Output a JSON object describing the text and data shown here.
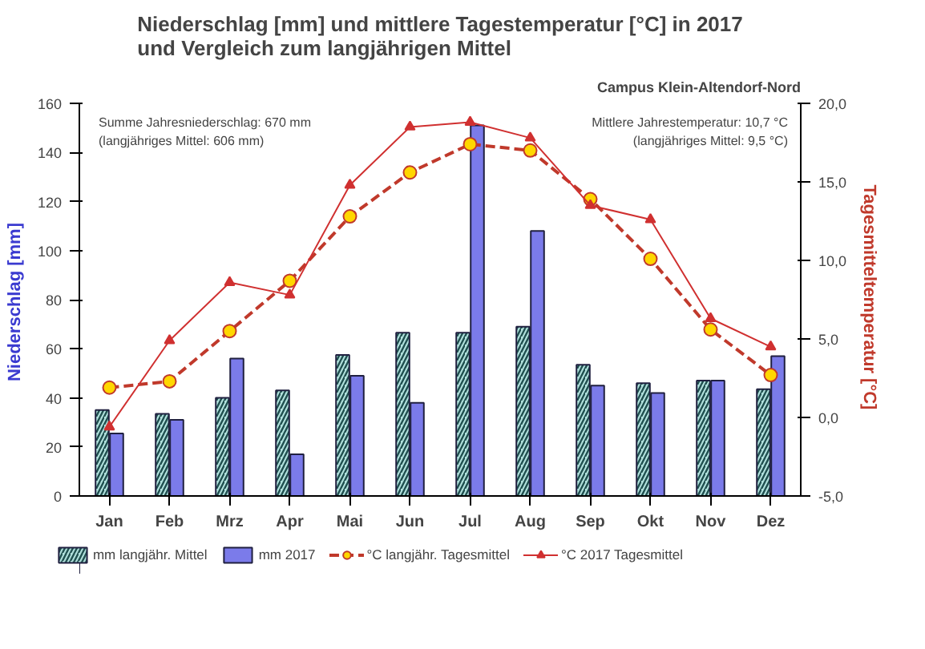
{
  "chart_data": {
    "type": "bar",
    "title": "Niederschlag [mm] und mittlere Tagestemperatur [°C] in 2017\nund Vergleich zum langjährigen Mittel",
    "subtitle": "Campus Klein-Altendorf-Nord",
    "ylabel": "Niederschlag  [mm]",
    "y2label": "Tagesmitteltemperatur  [°C]",
    "categories": [
      "Jan",
      "Feb",
      "Mrz",
      "Apr",
      "Mai",
      "Jun",
      "Jul",
      "Aug",
      "Sep",
      "Okt",
      "Nov",
      "Dez"
    ],
    "series": [
      {
        "name": "mm langjähr. Mittel",
        "color": "#b0e0dc",
        "values": [
          35,
          33.5,
          40,
          43,
          57.5,
          66.5,
          66.5,
          69,
          53.5,
          46,
          47,
          43.5
        ]
      },
      {
        "name": "mm 2017",
        "color": "#7b7bea",
        "values": [
          25.5,
          31,
          56,
          17,
          49,
          38,
          151,
          108,
          45,
          42,
          47,
          57
        ]
      },
      {
        "name": "°C langjähr. Tagesmittel",
        "type": "line",
        "axis": "y2",
        "color": "#c0392b",
        "marker": "circle",
        "line_style": "dashed",
        "values": [
          1.9,
          2.3,
          5.5,
          8.7,
          12.8,
          15.6,
          17.4,
          17.0,
          13.9,
          10.1,
          5.6,
          2.7
        ]
      },
      {
        "name": "°C 2017 Tagesmittel",
        "type": "line",
        "axis": "y2",
        "color": "#d03030",
        "marker": "triangle",
        "line_style": "solid",
        "values": [
          -0.6,
          4.9,
          8.6,
          7.8,
          14.8,
          18.5,
          18.8,
          17.8,
          13.5,
          12.6,
          6.3,
          4.5
        ]
      }
    ],
    "ylim": [
      0,
      160
    ],
    "yticks": [
      0,
      20,
      40,
      60,
      80,
      100,
      120,
      140,
      160
    ],
    "y2lim": [
      -5,
      20
    ],
    "y2ticks": [
      {
        "value": -5,
        "label": "-5,0"
      },
      {
        "value": 0,
        "label": "0,0"
      },
      {
        "value": 5,
        "label": "5,0"
      },
      {
        "value": 10,
        "label": "10,0"
      },
      {
        "value": 15,
        "label": "15,0"
      },
      {
        "value": 20,
        "label": "20,0"
      }
    ],
    "annotations": [
      "Summe Jahresniederschlag: 670 mm\n(langjähriges Mittel: 606 mm)",
      "Mittlere Jahrestemperatur: 10,7 °C\n(langjähriges Mittel: 9,5 °C)"
    ],
    "grid": false,
    "legend": "bottom"
  }
}
